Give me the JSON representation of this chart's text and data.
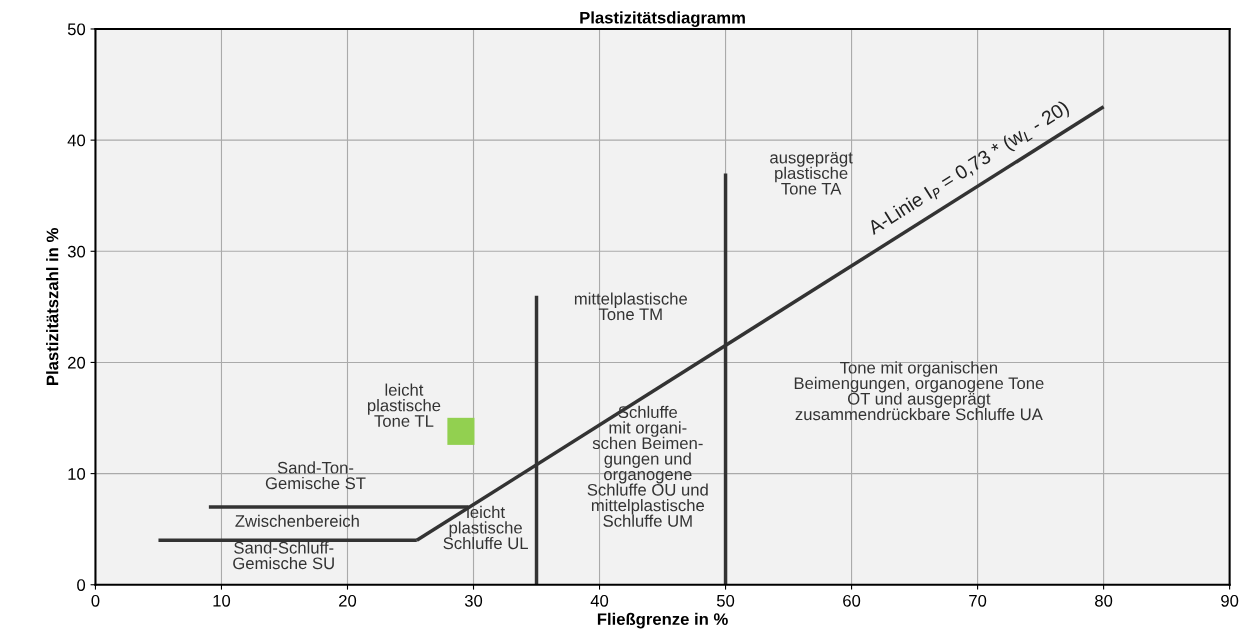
{
  "chart_data": {
    "type": "line",
    "title": "Plastizitätsdiagramm",
    "xlabel": "Fließgrenze in %",
    "ylabel": "Plastizitätszahl in %",
    "xlim": [
      0,
      90
    ],
    "xticks": [
      0,
      10,
      20,
      30,
      40,
      50,
      60,
      70,
      80,
      90
    ],
    "ylim": [
      0,
      50
    ],
    "yticks": [
      0,
      10,
      20,
      30,
      40,
      50
    ],
    "grid": true,
    "legend": false,
    "line_style": "solid",
    "series": [
      {
        "name": "A-Linie I$_{P}$ = 0,73 * (w$_{L}$ - 20)",
        "color": "#333333",
        "x": [
          25.5,
          80
        ],
        "values": [
          4,
          43
        ]
      },
      {
        "color": "#333333",
        "x": [
          9,
          29.6
        ],
        "values": [
          7,
          7
        ]
      },
      {
        "color": "#333333",
        "x": [
          5,
          25.5
        ],
        "values": [
          4,
          4
        ]
      },
      {
        "color": "#333333",
        "x": [
          35,
          35
        ],
        "values": [
          0,
          26
        ]
      },
      {
        "color": "#333333",
        "x": [
          50,
          50
        ],
        "values": [
          0,
          37
        ]
      },
      {
        "type": "scatter",
        "color": "#92d050",
        "marker": "square",
        "x": [
          29
        ],
        "values": [
          13.8
        ]
      }
    ],
    "annotations": [
      "ausgeprägt\nplastische\nTone TA",
      "mittelplastische\nTone TM",
      "Tone mit organischen\nBeimengungen, organogene Tone\nOT und ausgeprägt\nzusammendrückbare Schluffe UA",
      "leicht\nplastische\nTone TL",
      "Schluffe\nmit organi-\nschen Beimen-\ngungen und\norganogene\nSchluffe OU und\nmittelplastische\nSchluffe UM",
      "Sand-Ton-\nGemische ST",
      "Zwischenbereich",
      "Sand-Schluff-\nGemische SU",
      "leicht\nplastische\nSchluffe UL"
    ]
  }
}
